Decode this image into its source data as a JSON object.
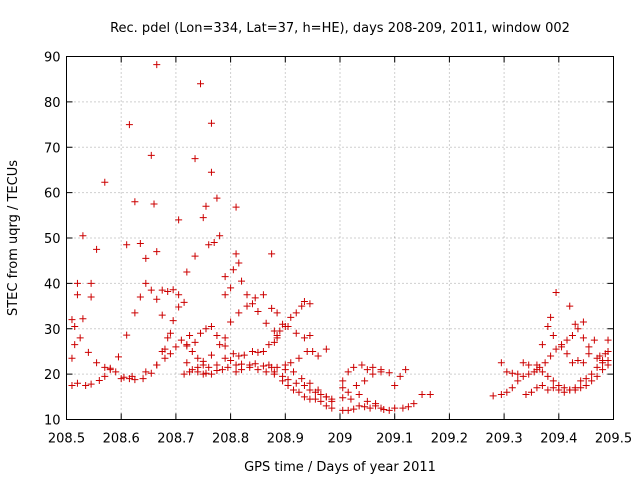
{
  "chart_data": {
    "type": "scatter",
    "title": "Rec. pdel (Lon=334, Lat=37, h=HE), days 208-209, 2011, window 002",
    "xlabel": "GPS time / Days of year 2011",
    "ylabel": "STEC from uqrg / TECUs",
    "xlim": [
      208.5,
      209.5
    ],
    "ylim": [
      10,
      90
    ],
    "grid": true,
    "marker": "+",
    "color": "#cc0000",
    "x_ticks": [
      "208.5",
      "208.6",
      "208.7",
      "208.8",
      "208.9",
      "209",
      "209.1",
      "209.2",
      "209.3",
      "209.4",
      "209.5"
    ],
    "x_tick_values": [
      208.5,
      208.6,
      208.7,
      208.8,
      208.9,
      209.0,
      209.1,
      209.2,
      209.3,
      209.4,
      209.5
    ],
    "y_ticks": [
      "10",
      "20",
      "30",
      "40",
      "50",
      "60",
      "70",
      "80",
      "90"
    ],
    "y_tick_values": [
      10,
      20,
      30,
      40,
      50,
      60,
      70,
      80,
      90
    ],
    "points": [
      [
        208.51,
        17.5
      ],
      [
        208.52,
        18.0
      ],
      [
        208.535,
        17.5
      ],
      [
        208.545,
        17.8
      ],
      [
        208.56,
        18.6
      ],
      [
        208.57,
        19.5
      ],
      [
        208.58,
        21.3
      ],
      [
        208.595,
        23.8
      ],
      [
        208.61,
        28.6
      ],
      [
        208.625,
        33.5
      ],
      [
        208.635,
        37.0
      ],
      [
        208.645,
        40.0
      ],
      [
        208.655,
        38.5
      ],
      [
        208.665,
        36.5
      ],
      [
        208.675,
        38.5
      ],
      [
        208.685,
        38.2
      ],
      [
        208.695,
        38.6
      ],
      [
        208.705,
        37.5
      ],
      [
        208.715,
        35.8
      ],
      [
        208.515,
        30.5
      ],
      [
        208.525,
        28.0
      ],
      [
        208.54,
        24.8
      ],
      [
        208.555,
        22.5
      ],
      [
        208.57,
        21.5
      ],
      [
        208.59,
        20.5
      ],
      [
        208.605,
        19.3
      ],
      [
        208.615,
        19.0
      ],
      [
        208.625,
        18.8
      ],
      [
        208.64,
        19.0
      ],
      [
        208.655,
        20.2
      ],
      [
        208.665,
        22.0
      ],
      [
        208.675,
        25.0
      ],
      [
        208.685,
        28.0
      ],
      [
        208.695,
        31.8
      ],
      [
        208.705,
        34.8
      ],
      [
        208.51,
        32.0
      ],
      [
        208.52,
        37.5
      ],
      [
        208.53,
        32.2
      ],
      [
        208.545,
        37.0
      ],
      [
        208.58,
        21.0
      ],
      [
        208.51,
        23.5
      ],
      [
        208.515,
        26.5
      ],
      [
        208.52,
        40.0
      ],
      [
        208.53,
        50.5
      ],
      [
        208.545,
        40.0
      ],
      [
        208.555,
        47.5
      ],
      [
        208.57,
        62.3
      ],
      [
        208.61,
        48.5
      ],
      [
        208.615,
        75.0
      ],
      [
        208.625,
        58.0
      ],
      [
        208.635,
        48.8
      ],
      [
        208.645,
        45.5
      ],
      [
        208.655,
        68.2
      ],
      [
        208.665,
        47.0
      ],
      [
        208.66,
        57.5
      ],
      [
        208.665,
        88.2
      ],
      [
        208.675,
        33.0
      ],
      [
        208.68,
        25.5
      ],
      [
        208.69,
        29.0
      ],
      [
        208.725,
        28.5
      ],
      [
        208.735,
        67.5
      ],
      [
        208.745,
        84.0
      ],
      [
        208.755,
        57.0
      ],
      [
        208.765,
        75.3
      ],
      [
        208.765,
        64.5
      ],
      [
        208.77,
        49.0
      ],
      [
        208.78,
        50.5
      ],
      [
        208.79,
        37.5
      ],
      [
        208.8,
        39.0
      ],
      [
        208.81,
        56.8
      ],
      [
        208.81,
        46.5
      ],
      [
        208.82,
        40.5
      ],
      [
        208.875,
        46.5
      ],
      [
        208.705,
        54.0
      ],
      [
        208.72,
        42.5
      ],
      [
        208.735,
        46.0
      ],
      [
        208.75,
        54.5
      ],
      [
        208.76,
        48.5
      ],
      [
        208.775,
        58.8
      ],
      [
        208.79,
        41.5
      ],
      [
        208.805,
        43.0
      ],
      [
        208.815,
        44.5
      ],
      [
        208.83,
        37.5
      ],
      [
        208.84,
        35.5
      ],
      [
        208.85,
        33.8
      ],
      [
        208.865,
        31.2
      ],
      [
        208.88,
        29.5
      ],
      [
        208.885,
        28.0
      ],
      [
        208.72,
        22.5
      ],
      [
        208.73,
        21.0
      ],
      [
        208.74,
        20.5
      ],
      [
        208.75,
        20.0
      ],
      [
        208.755,
        20.2
      ],
      [
        208.765,
        20.0
      ],
      [
        208.775,
        20.8
      ],
      [
        208.785,
        21.0
      ],
      [
        208.795,
        21.5
      ],
      [
        208.81,
        22.0
      ],
      [
        208.82,
        22.2
      ],
      [
        208.835,
        22.0
      ],
      [
        208.845,
        22.3
      ],
      [
        208.86,
        21.8
      ],
      [
        208.875,
        21.5
      ],
      [
        208.885,
        21.5
      ],
      [
        208.9,
        22.0
      ],
      [
        208.91,
        22.5
      ],
      [
        208.925,
        23.5
      ],
      [
        208.94,
        25.0
      ],
      [
        208.95,
        25.0
      ],
      [
        208.96,
        24.0
      ],
      [
        208.975,
        25.5
      ],
      [
        208.72,
        26.5
      ],
      [
        208.735,
        27.0
      ],
      [
        208.745,
        29.0
      ],
      [
        208.755,
        30.0
      ],
      [
        208.765,
        30.5
      ],
      [
        208.775,
        28.5
      ],
      [
        208.79,
        26.2
      ],
      [
        208.805,
        24.5
      ],
      [
        208.815,
        24.0
      ],
      [
        208.825,
        24.2
      ],
      [
        208.84,
        25.0
      ],
      [
        208.85,
        24.8
      ],
      [
        208.86,
        25.0
      ],
      [
        208.87,
        26.5
      ],
      [
        208.88,
        27.0
      ],
      [
        208.885,
        28.5
      ],
      [
        208.89,
        29.5
      ],
      [
        208.9,
        30.5
      ],
      [
        208.91,
        32.5
      ],
      [
        208.92,
        33.5
      ],
      [
        208.93,
        35.0
      ],
      [
        208.935,
        36.0
      ],
      [
        208.945,
        35.5
      ],
      [
        208.715,
        20.0
      ],
      [
        208.725,
        20.5
      ],
      [
        208.74,
        21.5
      ],
      [
        208.75,
        22.8
      ],
      [
        208.765,
        24.2
      ],
      [
        208.78,
        26.5
      ],
      [
        208.79,
        28.0
      ],
      [
        208.8,
        31.5
      ],
      [
        208.815,
        33.5
      ],
      [
        208.83,
        35.0
      ],
      [
        208.845,
        36.8
      ],
      [
        208.86,
        37.5
      ],
      [
        208.875,
        34.5
      ],
      [
        208.885,
        33.5
      ],
      [
        208.895,
        31.0
      ],
      [
        208.905,
        30.5
      ],
      [
        208.92,
        29.0
      ],
      [
        208.935,
        28.0
      ],
      [
        208.945,
        28.5
      ],
      [
        208.81,
        20.5
      ],
      [
        208.82,
        21.0
      ],
      [
        208.835,
        21.5
      ],
      [
        208.85,
        21.0
      ],
      [
        208.865,
        20.5
      ],
      [
        208.88,
        20.0
      ],
      [
        208.895,
        18.5
      ],
      [
        208.905,
        17.5
      ],
      [
        208.915,
        16.5
      ],
      [
        208.925,
        16.0
      ],
      [
        208.935,
        15.0
      ],
      [
        208.945,
        14.5
      ],
      [
        208.955,
        14.5
      ],
      [
        208.965,
        14.0
      ],
      [
        208.975,
        13.0
      ],
      [
        208.985,
        12.5
      ],
      [
        208.87,
        22.0
      ],
      [
        208.88,
        20.5
      ],
      [
        208.895,
        19.5
      ],
      [
        208.905,
        18.8
      ],
      [
        208.92,
        18.0
      ],
      [
        208.935,
        17.5
      ],
      [
        208.945,
        16.5
      ],
      [
        208.955,
        16.0
      ],
      [
        208.965,
        15.5
      ],
      [
        208.975,
        15.0
      ],
      [
        208.985,
        14.5
      ],
      [
        208.9,
        21.0
      ],
      [
        208.915,
        20.5
      ],
      [
        208.93,
        19.0
      ],
      [
        208.945,
        18.0
      ],
      [
        208.96,
        16.5
      ],
      [
        208.975,
        15.0
      ],
      [
        208.985,
        14.0
      ],
      [
        208.6,
        19.0
      ],
      [
        208.62,
        19.5
      ],
      [
        208.645,
        20.5
      ],
      [
        208.665,
        22.0
      ],
      [
        208.68,
        23.5
      ],
      [
        208.69,
        24.5
      ],
      [
        208.7,
        26.0
      ],
      [
        208.71,
        27.5
      ],
      [
        208.72,
        26.2
      ],
      [
        208.73,
        25.0
      ],
      [
        208.74,
        23.5
      ],
      [
        208.75,
        22.0
      ],
      [
        208.76,
        21.5
      ],
      [
        208.775,
        22.0
      ],
      [
        208.79,
        23.5
      ],
      [
        208.8,
        23.0
      ],
      [
        209.005,
        12.0
      ],
      [
        209.015,
        12.0
      ],
      [
        209.025,
        12.3
      ],
      [
        209.035,
        13.0
      ],
      [
        209.045,
        12.8
      ],
      [
        209.055,
        12.5
      ],
      [
        209.065,
        13.5
      ],
      [
        209.08,
        12.2
      ],
      [
        209.09,
        12.0
      ],
      [
        209.1,
        12.5
      ],
      [
        209.115,
        12.5
      ],
      [
        209.125,
        12.8
      ],
      [
        209.135,
        13.5
      ],
      [
        209.15,
        15.5
      ],
      [
        209.165,
        15.5
      ],
      [
        209.005,
        14.8
      ],
      [
        209.015,
        16.0
      ],
      [
        209.03,
        17.5
      ],
      [
        209.045,
        18.5
      ],
      [
        209.06,
        20.0
      ],
      [
        209.075,
        20.5
      ],
      [
        209.09,
        20.3
      ],
      [
        209.1,
        17.5
      ],
      [
        209.11,
        19.5
      ],
      [
        209.12,
        21.0
      ],
      [
        209.005,
        18.5
      ],
      [
        209.015,
        20.5
      ],
      [
        209.025,
        21.5
      ],
      [
        209.04,
        22.0
      ],
      [
        209.05,
        21.0
      ],
      [
        209.06,
        21.5
      ],
      [
        209.075,
        21.0
      ],
      [
        209.005,
        17.0
      ],
      [
        209.02,
        14.5
      ],
      [
        209.035,
        15.5
      ],
      [
        209.05,
        14.0
      ],
      [
        209.065,
        13.0
      ],
      [
        209.075,
        12.5
      ],
      [
        209.28,
        15.2
      ],
      [
        209.295,
        15.5
      ],
      [
        209.305,
        16.0
      ],
      [
        209.315,
        17.0
      ],
      [
        209.325,
        18.5
      ],
      [
        209.335,
        19.5
      ],
      [
        209.345,
        20.0
      ],
      [
        209.355,
        20.5
      ],
      [
        209.365,
        21.5
      ],
      [
        209.375,
        22.5
      ],
      [
        209.385,
        24.0
      ],
      [
        209.395,
        25.5
      ],
      [
        209.405,
        26.5
      ],
      [
        209.415,
        27.5
      ],
      [
        209.425,
        28.5
      ],
      [
        209.435,
        30.0
      ],
      [
        209.445,
        31.5
      ],
      [
        209.295,
        22.5
      ],
      [
        209.305,
        20.5
      ],
      [
        209.315,
        20.2
      ],
      [
        209.325,
        20.0
      ],
      [
        209.335,
        22.5
      ],
      [
        209.345,
        22.0
      ],
      [
        209.36,
        21.0
      ],
      [
        209.37,
        20.5
      ],
      [
        209.38,
        19.5
      ],
      [
        209.39,
        18.5
      ],
      [
        209.4,
        17.5
      ],
      [
        209.41,
        17.0
      ],
      [
        209.42,
        16.5
      ],
      [
        209.43,
        16.5
      ],
      [
        209.44,
        17.0
      ],
      [
        209.45,
        17.5
      ],
      [
        209.46,
        18.5
      ],
      [
        209.47,
        19.5
      ],
      [
        209.48,
        21.0
      ],
      [
        209.49,
        22.0
      ],
      [
        209.36,
        22.0
      ],
      [
        209.37,
        26.5
      ],
      [
        209.38,
        30.5
      ],
      [
        209.385,
        32.5
      ],
      [
        209.39,
        28.5
      ],
      [
        209.395,
        38.0
      ],
      [
        209.405,
        26.0
      ],
      [
        209.415,
        24.5
      ],
      [
        209.425,
        22.5
      ],
      [
        209.435,
        23.0
      ],
      [
        209.445,
        22.5
      ],
      [
        209.455,
        24.5
      ],
      [
        209.465,
        27.5
      ],
      [
        209.475,
        24.0
      ],
      [
        209.485,
        24.5
      ],
      [
        209.49,
        27.5
      ],
      [
        209.34,
        15.5
      ],
      [
        209.35,
        16.0
      ],
      [
        209.36,
        17.0
      ],
      [
        209.37,
        17.5
      ],
      [
        209.38,
        16.5
      ],
      [
        209.39,
        17.0
      ],
      [
        209.4,
        16.5
      ],
      [
        209.41,
        16.0
      ],
      [
        209.42,
        16.5
      ],
      [
        209.43,
        17.0
      ],
      [
        209.44,
        18.5
      ],
      [
        209.45,
        19.0
      ],
      [
        209.46,
        20.0
      ],
      [
        209.47,
        21.5
      ],
      [
        209.48,
        23.0
      ],
      [
        209.49,
        25.0
      ],
      [
        209.42,
        35.0
      ],
      [
        209.43,
        31.0
      ],
      [
        209.445,
        28.0
      ],
      [
        209.455,
        26.0
      ],
      [
        209.47,
        23.5
      ],
      [
        209.48,
        22.5
      ],
      [
        209.49,
        23.0
      ]
    ]
  }
}
